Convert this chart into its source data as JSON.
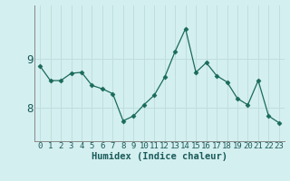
{
  "x": [
    0,
    1,
    2,
    3,
    4,
    5,
    6,
    7,
    8,
    9,
    10,
    11,
    12,
    13,
    14,
    15,
    16,
    17,
    18,
    19,
    20,
    21,
    22,
    23
  ],
  "y": [
    8.85,
    8.55,
    8.55,
    8.7,
    8.72,
    8.45,
    8.38,
    8.28,
    7.72,
    7.82,
    8.05,
    8.25,
    8.62,
    9.15,
    9.62,
    8.72,
    8.92,
    8.65,
    8.52,
    8.18,
    8.05,
    8.55,
    7.82,
    7.68
  ],
  "line_color": "#1a6b5a",
  "marker": "D",
  "marker_size": 2.5,
  "bg_color": "#d4efef",
  "grid_color": "#c0dede",
  "xlabel": "Humidex (Indice chaleur)",
  "yticks": [
    8,
    9
  ],
  "ylim": [
    7.3,
    10.1
  ],
  "xlim": [
    -0.5,
    23.5
  ],
  "tick_fontsize": 6.5,
  "xlabel_fontsize": 7.5
}
